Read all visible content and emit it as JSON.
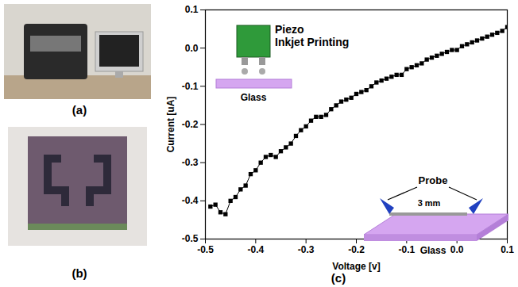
{
  "panel_labels": [
    "(a)",
    "(b)",
    "(c)"
  ],
  "chart_data": {
    "type": "line",
    "xlabel": "Voltage [v]",
    "ylabel": "Current [uA]",
    "xlim": [
      -0.5,
      0.1
    ],
    "xticks": [
      -0.5,
      -0.4,
      -0.3,
      -0.2,
      -0.1,
      {
        "value": 0,
        "label": "0.0"
      },
      0.1
    ],
    "ylim": [
      -0.5,
      0.1
    ],
    "yticks": [
      -0.5,
      -0.4,
      -0.3,
      -0.2,
      -0.1,
      {
        "value": 0,
        "label": "0.0"
      },
      0.1
    ],
    "marker": "square",
    "line_style": "solid",
    "color": "#000000",
    "annotations": [
      "Piezo",
      "Inkjet Printing",
      "Glass",
      "Probe",
      "3 mm",
      "Glass"
    ],
    "x": [
      -0.49,
      -0.48,
      -0.47,
      -0.46,
      -0.45,
      -0.44,
      -0.43,
      -0.42,
      -0.41,
      -0.4,
      -0.39,
      -0.38,
      -0.37,
      -0.36,
      -0.35,
      -0.34,
      -0.33,
      -0.32,
      -0.31,
      -0.3,
      -0.29,
      -0.28,
      -0.27,
      -0.26,
      -0.25,
      -0.24,
      -0.23,
      -0.22,
      -0.21,
      -0.2,
      -0.19,
      -0.18,
      -0.17,
      -0.16,
      -0.15,
      -0.14,
      -0.13,
      -0.12,
      -0.11,
      -0.1,
      -0.09,
      -0.08,
      -0.07,
      -0.06,
      -0.05,
      -0.04,
      -0.03,
      -0.02,
      -0.01,
      0.0,
      0.01,
      0.02,
      0.03,
      0.04,
      0.05,
      0.06,
      0.07,
      0.08,
      0.09,
      0.1
    ],
    "values": [
      -0.415,
      -0.41,
      -0.43,
      -0.435,
      -0.4,
      -0.39,
      -0.37,
      -0.36,
      -0.33,
      -0.32,
      -0.3,
      -0.285,
      -0.28,
      -0.285,
      -0.27,
      -0.26,
      -0.25,
      -0.23,
      -0.215,
      -0.205,
      -0.19,
      -0.18,
      -0.18,
      -0.175,
      -0.16,
      -0.15,
      -0.14,
      -0.135,
      -0.13,
      -0.12,
      -0.115,
      -0.11,
      -0.1,
      -0.09,
      -0.085,
      -0.08,
      -0.075,
      -0.07,
      -0.07,
      -0.055,
      -0.05,
      -0.045,
      -0.04,
      -0.03,
      -0.025,
      -0.02,
      -0.015,
      -0.01,
      -0.005,
      -0.005,
      0.005,
      0.01,
      0.015,
      0.02,
      0.025,
      0.03,
      0.035,
      0.04,
      0.045,
      0.055
    ]
  }
}
